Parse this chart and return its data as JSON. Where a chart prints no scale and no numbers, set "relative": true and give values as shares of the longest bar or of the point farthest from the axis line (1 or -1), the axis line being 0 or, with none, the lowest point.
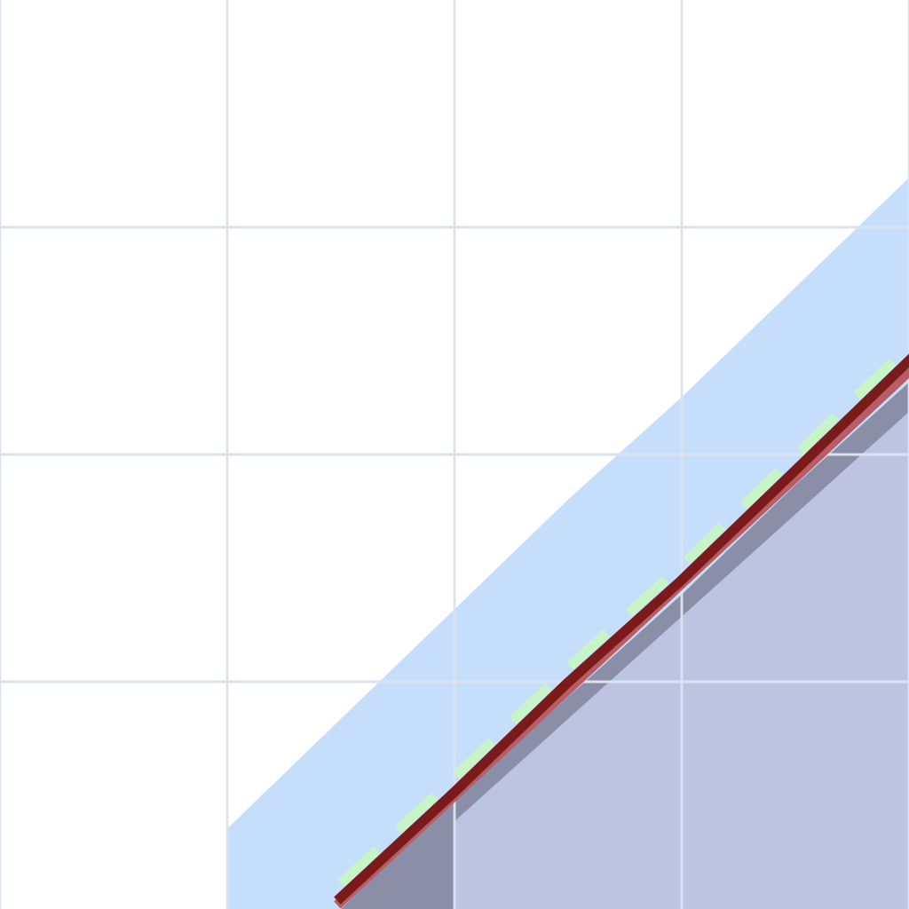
{
  "chart_data": {
    "type": "line",
    "relative": true,
    "grid": true,
    "categories": [
      null,
      null,
      null,
      null,
      null,
      null,
      null,
      null,
      null
    ],
    "series": [
      {
        "type": "area",
        "color": "#c4defc",
        "values": [
          null,
          null,
          0.11,
          0.26,
          0.41,
          0.56,
          0.7,
          0.85,
          1.0
        ]
      },
      {
        "type": "area",
        "color": "#8a8ea6",
        "values": [
          null,
          null,
          null,
          0,
          0.15,
          0.29,
          0.43,
          0.58,
          0.72
        ]
      },
      {
        "type": "area",
        "color": "#bcc4e2",
        "values": [
          null,
          null,
          null,
          null,
          0.12,
          0.26,
          0.4,
          0.54,
          0.68
        ]
      },
      {
        "color": "#b85c66",
        "values": [
          null,
          null,
          null,
          0.01,
          0.155,
          0.3,
          0.445,
          0.59,
          0.735
        ]
      },
      {
        "color": "#7a1a1a",
        "values": [
          null,
          null,
          null,
          0.016,
          0.16,
          0.31,
          0.45,
          0.6,
          0.75
        ]
      },
      {
        "color": "#c8f5c8",
        "line_style": "dashed",
        "values": [
          null,
          null,
          null,
          0.035,
          0.18,
          0.33,
          0.47,
          0.62,
          0.77
        ]
      }
    ]
  }
}
